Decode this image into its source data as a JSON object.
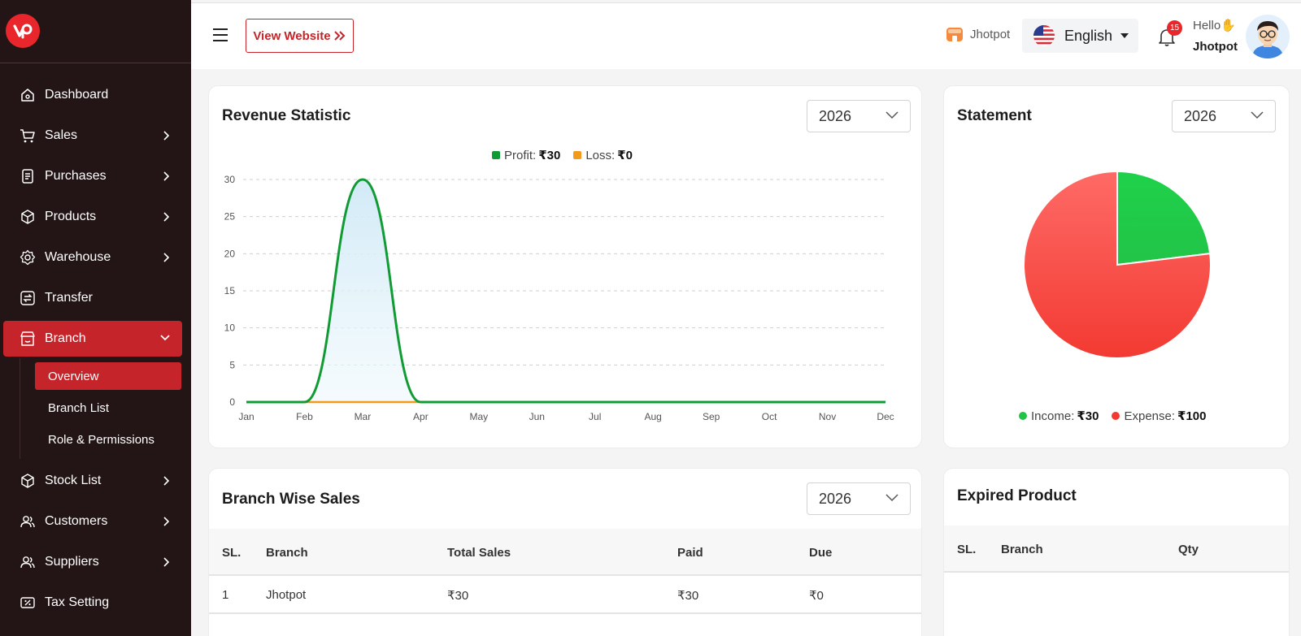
{
  "app": {
    "logo_icon": "vp-logo-icon",
    "accent": "#c5242a",
    "sidebar_bg": "#231515"
  },
  "sidebar": {
    "items": [
      {
        "label": "Dashboard",
        "icon": "home-icon"
      },
      {
        "label": "Sales",
        "icon": "cart-icon"
      },
      {
        "label": "Purchases",
        "icon": "receipt-icon"
      },
      {
        "label": "Products",
        "icon": "box-icon"
      },
      {
        "label": "Warehouse",
        "icon": "gear-icon"
      },
      {
        "label": "Transfer",
        "icon": "transfer-icon"
      },
      {
        "label": "Branch",
        "icon": "store-icon"
      },
      {
        "label": "Stock List",
        "icon": "box-icon"
      },
      {
        "label": "Customers",
        "icon": "users-icon"
      },
      {
        "label": "Suppliers",
        "icon": "users-icon"
      },
      {
        "label": "Tax Setting",
        "icon": "tax-icon"
      }
    ],
    "branch_submenu": [
      "Overview",
      "Branch List",
      "Role & Permissions"
    ]
  },
  "topbar": {
    "view_website": "View Website",
    "store_name": "Jhotpot",
    "language": "English",
    "notification_count": "15",
    "greeting": "Hello",
    "user_name": "Jhotpot"
  },
  "revenue": {
    "title": "Revenue Statistic",
    "year": "2026",
    "legend": [
      {
        "label": "Profit:",
        "value": "₹30",
        "color": "#119b35"
      },
      {
        "label": "Loss:",
        "value": "₹0",
        "color": "#f39a1b"
      }
    ]
  },
  "statement": {
    "title": "Statement",
    "year": "2026",
    "legend": [
      {
        "label": "Income:",
        "value": "₹30",
        "color": "#22c447"
      },
      {
        "label": "Expense:",
        "value": "₹100",
        "color": "#f23a32"
      }
    ]
  },
  "branch_sales": {
    "title": "Branch Wise Sales",
    "year": "2026",
    "columns": [
      "SL.",
      "Branch",
      "Total Sales",
      "Paid",
      "Due"
    ],
    "rows": [
      [
        "1",
        "Jhotpot",
        "₹30",
        "₹30",
        "₹0"
      ]
    ]
  },
  "expired": {
    "title": "Expired Product",
    "columns": [
      "SL.",
      "Branch",
      "Qty"
    ]
  },
  "chart_data": [
    {
      "type": "area",
      "title": "Revenue Statistic",
      "categories": [
        "Jan",
        "Feb",
        "Mar",
        "Apr",
        "May",
        "Jun",
        "Jul",
        "Aug",
        "Sep",
        "Oct",
        "Nov",
        "Dec"
      ],
      "series": [
        {
          "name": "Profit",
          "values": [
            0,
            0,
            30,
            0,
            0,
            0,
            0,
            0,
            0,
            0,
            0,
            0
          ],
          "color": "#119b35"
        },
        {
          "name": "Loss",
          "values": [
            0,
            0,
            0,
            0,
            0,
            0,
            0,
            0,
            0,
            0,
            0,
            0
          ],
          "color": "#f39a1b"
        }
      ],
      "ylim": [
        0,
        30
      ],
      "yticks": [
        0,
        5,
        10,
        15,
        20,
        25,
        30
      ],
      "grid": true,
      "legend": "top-center"
    },
    {
      "type": "pie",
      "title": "Statement",
      "slices": [
        {
          "name": "Income",
          "value": 30,
          "color": "#22c447"
        },
        {
          "name": "Expense",
          "value": 100,
          "color": "#f23a32"
        }
      ],
      "legend": "bottom-center"
    }
  ]
}
